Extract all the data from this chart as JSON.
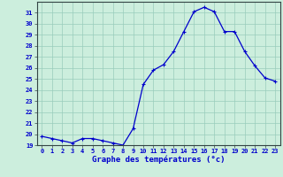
{
  "hours": [
    0,
    1,
    2,
    3,
    4,
    5,
    6,
    7,
    8,
    9,
    10,
    11,
    12,
    13,
    14,
    15,
    16,
    17,
    18,
    19,
    20,
    21,
    22,
    23
  ],
  "temps": [
    19.8,
    19.6,
    19.4,
    19.2,
    19.6,
    19.6,
    19.4,
    19.2,
    19.0,
    20.5,
    24.5,
    25.8,
    26.3,
    27.5,
    29.3,
    31.1,
    31.5,
    31.1,
    29.3,
    29.3,
    27.5,
    26.2,
    25.1,
    24.8
  ],
  "line_color": "#0000cc",
  "bg_color": "#cceedd",
  "grid_color": "#99ccbb",
  "xlabel": "Graphe des températures (°c)",
  "xlabel_color": "#0000cc",
  "tick_color": "#0000cc",
  "ylim": [
    19,
    32
  ],
  "yticks": [
    19,
    20,
    21,
    22,
    23,
    24,
    25,
    26,
    27,
    28,
    29,
    30,
    31
  ],
  "xlim": [
    -0.5,
    23.5
  ],
  "axes_color": "#334444"
}
